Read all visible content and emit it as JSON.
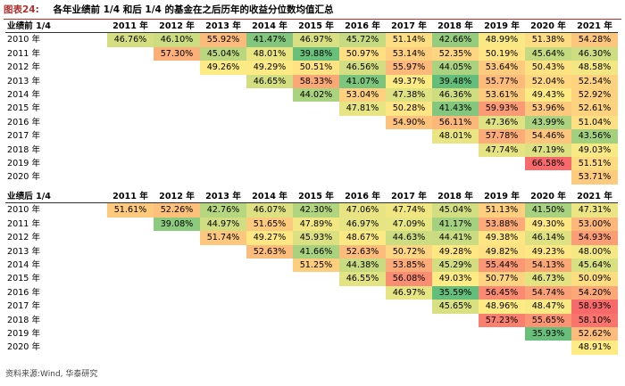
{
  "title": {
    "label": "图表24:",
    "text": "各年业绩前 1/4 和后 1/4 的基金在之后历年的收益分位数均值汇总"
  },
  "years": [
    "2011 年",
    "2012 年",
    "2013 年",
    "2014 年",
    "2015 年",
    "2016 年",
    "2017 年",
    "2018 年",
    "2019 年",
    "2020 年",
    "2021 年"
  ],
  "tables": [
    {
      "header": "业绩前 1/4",
      "rows": [
        {
          "label": "2010 年",
          "values": [
            "46.76%",
            "46.10%",
            "55.92%",
            "41.47%",
            "46.97%",
            "45.72%",
            "51.14%",
            "42.66%",
            "48.99%",
            "51.38%",
            "54.28%"
          ]
        },
        {
          "label": "2011 年",
          "values": [
            "",
            "57.30%",
            "45.04%",
            "48.01%",
            "39.88%",
            "50.97%",
            "53.14%",
            "52.35%",
            "50.19%",
            "45.64%",
            "46.30%"
          ]
        },
        {
          "label": "2012 年",
          "values": [
            "",
            "",
            "49.26%",
            "49.29%",
            "50.51%",
            "46.56%",
            "55.97%",
            "44.05%",
            "53.64%",
            "50.43%",
            "48.58%"
          ]
        },
        {
          "label": "2013 年",
          "values": [
            "",
            "",
            "",
            "46.65%",
            "58.33%",
            "41.07%",
            "49.37%",
            "39.48%",
            "55.77%",
            "52.04%",
            "52.54%"
          ]
        },
        {
          "label": "2014 年",
          "values": [
            "",
            "",
            "",
            "",
            "44.02%",
            "53.04%",
            "47.38%",
            "46.36%",
            "53.61%",
            "49.43%",
            "52.92%"
          ]
        },
        {
          "label": "2015 年",
          "values": [
            "",
            "",
            "",
            "",
            "",
            "47.81%",
            "50.28%",
            "41.43%",
            "59.93%",
            "53.96%",
            "52.61%"
          ]
        },
        {
          "label": "2016 年",
          "values": [
            "",
            "",
            "",
            "",
            "",
            "",
            "54.90%",
            "56.11%",
            "47.36%",
            "43.99%",
            "51.04%"
          ]
        },
        {
          "label": "2017 年",
          "values": [
            "",
            "",
            "",
            "",
            "",
            "",
            "",
            "48.01%",
            "57.78%",
            "54.46%",
            "43.56%"
          ]
        },
        {
          "label": "2018 年",
          "values": [
            "",
            "",
            "",
            "",
            "",
            "",
            "",
            "",
            "47.74%",
            "47.19%",
            "49.03%"
          ]
        },
        {
          "label": "2019 年",
          "values": [
            "",
            "",
            "",
            "",
            "",
            "",
            "",
            "",
            "",
            "66.58%",
            "51.51%"
          ]
        },
        {
          "label": "2020 年",
          "values": [
            "",
            "",
            "",
            "",
            "",
            "",
            "",
            "",
            "",
            "",
            "53.71%"
          ]
        }
      ]
    },
    {
      "header": "业绩后 1/4",
      "rows": [
        {
          "label": "2010 年",
          "values": [
            "51.61%",
            "52.26%",
            "42.76%",
            "46.07%",
            "42.30%",
            "47.06%",
            "47.74%",
            "45.04%",
            "51.13%",
            "41.50%",
            "47.31%"
          ]
        },
        {
          "label": "2011 年",
          "values": [
            "",
            "39.08%",
            "44.97%",
            "51.65%",
            "47.89%",
            "46.97%",
            "47.09%",
            "41.17%",
            "53.88%",
            "49.30%",
            "53.00%"
          ]
        },
        {
          "label": "2012 年",
          "values": [
            "",
            "",
            "51.74%",
            "49.27%",
            "45.93%",
            "48.67%",
            "44.63%",
            "44.41%",
            "49.38%",
            "46.14%",
            "54.93%"
          ]
        },
        {
          "label": "2013 年",
          "values": [
            "",
            "",
            "",
            "52.63%",
            "41.66%",
            "52.63%",
            "50.72%",
            "49.28%",
            "49.82%",
            "49.23%",
            "48.00%"
          ]
        },
        {
          "label": "2014 年",
          "values": [
            "",
            "",
            "",
            "",
            "51.25%",
            "44.38%",
            "53.85%",
            "45.29%",
            "55.44%",
            "54.13%",
            "45.64%"
          ]
        },
        {
          "label": "2015 年",
          "values": [
            "",
            "",
            "",
            "",
            "",
            "46.55%",
            "56.08%",
            "49.03%",
            "50.77%",
            "46.73%",
            "50.09%"
          ]
        },
        {
          "label": "2016 年",
          "values": [
            "",
            "",
            "",
            "",
            "",
            "",
            "46.97%",
            "35.59%",
            "56.45%",
            "54.74%",
            "54.20%"
          ]
        },
        {
          "label": "2017 年",
          "values": [
            "",
            "",
            "",
            "",
            "",
            "",
            "",
            "45.65%",
            "48.96%",
            "48.47%",
            "58.93%"
          ]
        },
        {
          "label": "2018 年",
          "values": [
            "",
            "",
            "",
            "",
            "",
            "",
            "",
            "",
            "57.23%",
            "55.65%",
            "58.10%"
          ]
        },
        {
          "label": "2019 年",
          "values": [
            "",
            "",
            "",
            "",
            "",
            "",
            "",
            "",
            "",
            "35.93%",
            "52.62%"
          ]
        },
        {
          "label": "2020 年",
          "values": [
            "",
            "",
            "",
            "",
            "",
            "",
            "",
            "",
            "",
            "",
            "48.91%"
          ]
        }
      ]
    }
  ],
  "colors": {
    "low": "#63be7b",
    "mid": "#ffeb84",
    "high": "#f8696b",
    "title_accent": "#b03030"
  },
  "source": "资料来源:Wind, 华泰研究"
}
